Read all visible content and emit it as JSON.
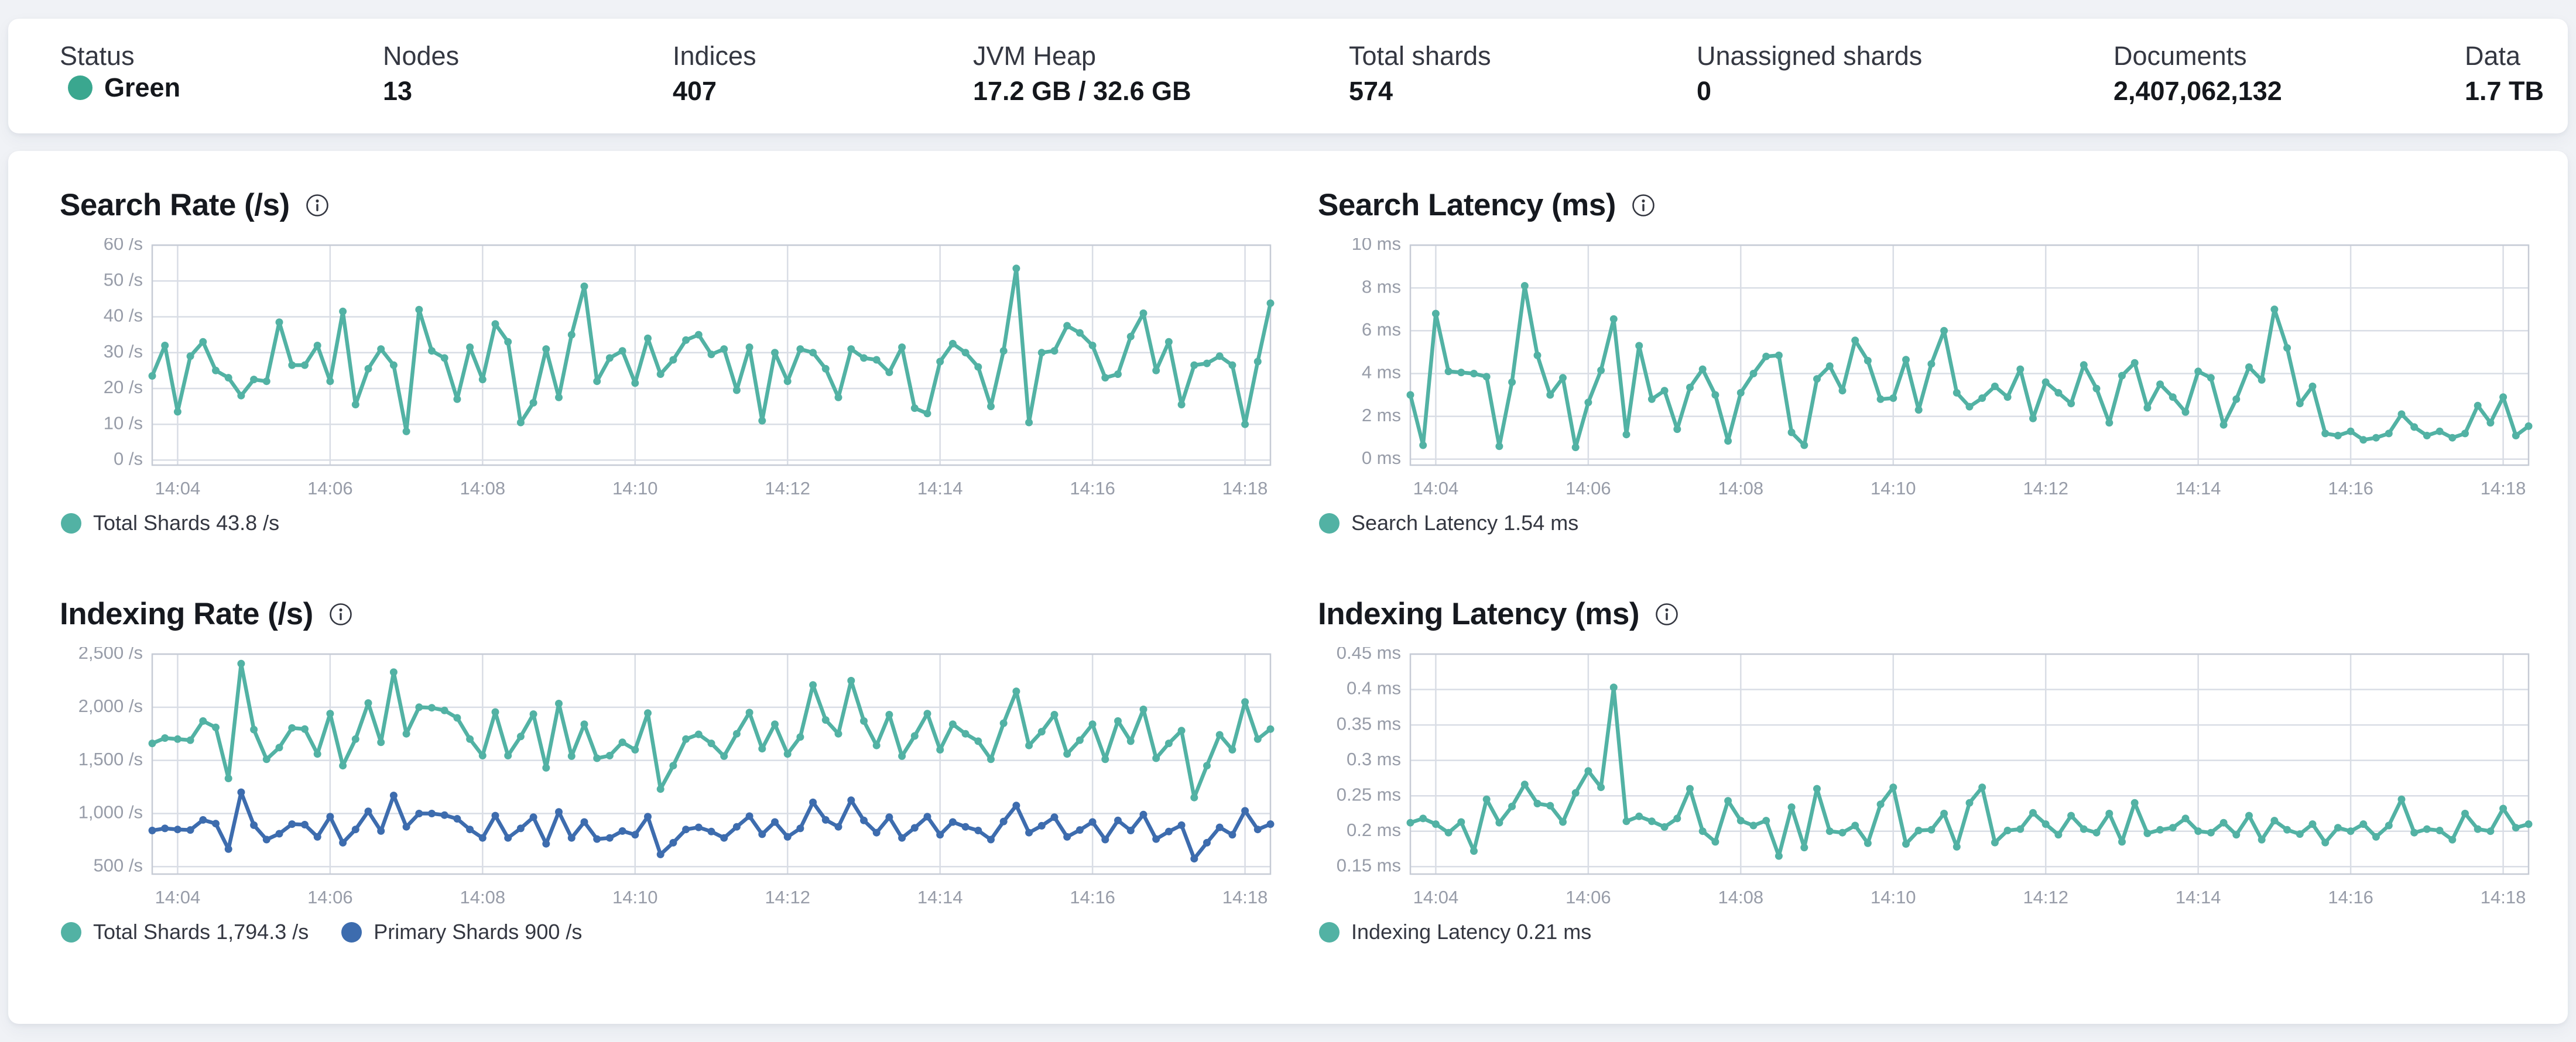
{
  "page": {
    "background": "#f0f2f6",
    "card_background": "#ffffff"
  },
  "colors": {
    "teal_series": "#52b2a4",
    "blue_series": "#3d6cae",
    "status_green_dot": "#3aa78f",
    "grid_line": "#d9dde5",
    "axis_border": "#c6cbd5",
    "tick_text": "#979ca8",
    "title_text": "#16191f",
    "legend_text": "#343741"
  },
  "summary_bar": {
    "items": [
      {
        "label": "Status",
        "value": "Green",
        "type": "status"
      },
      {
        "label": "Nodes",
        "value": "13"
      },
      {
        "label": "Indices",
        "value": "407"
      },
      {
        "label": "JVM Heap",
        "value": "17.2 GB / 32.6 GB"
      },
      {
        "label": "Total shards",
        "value": "574"
      },
      {
        "label": "Unassigned shards",
        "value": "0"
      },
      {
        "label": "Documents",
        "value": "2,407,062,132"
      },
      {
        "label": "Data",
        "value": "1.7 TB"
      }
    ]
  },
  "chart_data": [
    {
      "type": "line",
      "title": "Search Rate (/s)",
      "info_icon": "i-in-circle",
      "xlabel": "",
      "ylabel": "/s",
      "x_tick_labels": [
        "14:04",
        "14:06",
        "14:08",
        "14:10",
        "14:12",
        "14:14",
        "14:16",
        "14:18"
      ],
      "x_tick_indices": [
        2,
        14,
        26,
        38,
        50,
        62,
        74,
        86
      ],
      "x_start_time": "14:03:40",
      "x_step_seconds": 10,
      "ylim": [
        -1.4,
        60
      ],
      "y_ticks": [
        {
          "v": 0,
          "label": "0 /s"
        },
        {
          "v": 10,
          "label": "10 /s"
        },
        {
          "v": 20,
          "label": "20 /s"
        },
        {
          "v": 30,
          "label": "30 /s"
        },
        {
          "v": 40,
          "label": "40 /s"
        },
        {
          "v": 50,
          "label": "50 /s"
        },
        {
          "v": 60,
          "label": "60 /s"
        }
      ],
      "legend": [
        {
          "label": "Total Shards 43.8 /s",
          "color": "#52b2a4"
        }
      ],
      "series": [
        {
          "name": "Total Shards",
          "latest": "43.8 /s",
          "color": "#52b2a4",
          "values": [
            23.5,
            32,
            13.5,
            29,
            33,
            25,
            23,
            18,
            22.5,
            22,
            38.5,
            26.5,
            26.5,
            32,
            22,
            41.5,
            15.5,
            25.5,
            31,
            26.5,
            8,
            42,
            30.5,
            28.5,
            17,
            31.5,
            22.5,
            38,
            33,
            10.5,
            16,
            31,
            17.5,
            35,
            48.5,
            22,
            28.5,
            30.5,
            21.5,
            34,
            24,
            28,
            33.5,
            35,
            29.5,
            31,
            19.5,
            31.5,
            11,
            30,
            22,
            31,
            30,
            25.5,
            17.5,
            31,
            28.5,
            28,
            24.5,
            31.5,
            14.5,
            13,
            27.5,
            32.5,
            30,
            26,
            15,
            30.5,
            53.5,
            10.5,
            30,
            30.5,
            37.5,
            35.5,
            32,
            23,
            24,
            34.5,
            41,
            25,
            33,
            15.5,
            26.5,
            27,
            29,
            26.5,
            10,
            27.5,
            43.8
          ]
        }
      ]
    },
    {
      "type": "line",
      "title": "Search Latency (ms)",
      "info_icon": "i-in-circle",
      "xlabel": "",
      "ylabel": "ms",
      "x_tick_labels": [
        "14:04",
        "14:06",
        "14:08",
        "14:10",
        "14:12",
        "14:14",
        "14:16",
        "14:18"
      ],
      "x_tick_indices": [
        2,
        14,
        26,
        38,
        50,
        62,
        74,
        86
      ],
      "x_start_time": "14:03:40",
      "x_step_seconds": 10,
      "ylim": [
        -0.28,
        10
      ],
      "y_ticks": [
        {
          "v": 0,
          "label": "0 ms"
        },
        {
          "v": 2,
          "label": "2 ms"
        },
        {
          "v": 4,
          "label": "4 ms"
        },
        {
          "v": 6,
          "label": "6 ms"
        },
        {
          "v": 8,
          "label": "8 ms"
        },
        {
          "v": 10,
          "label": "10 ms"
        }
      ],
      "legend": [
        {
          "label": "Search Latency 1.54 ms",
          "color": "#52b2a4"
        }
      ],
      "series": [
        {
          "name": "Search Latency",
          "latest": "1.54 ms",
          "color": "#52b2a4",
          "values": [
            3.0,
            0.65,
            6.8,
            4.1,
            4.05,
            4.0,
            3.85,
            0.6,
            3.6,
            8.1,
            4.85,
            3.0,
            3.8,
            0.55,
            2.65,
            4.15,
            6.55,
            1.15,
            5.3,
            2.8,
            3.2,
            1.4,
            3.35,
            4.2,
            3.0,
            0.85,
            3.1,
            4.0,
            4.8,
            4.85,
            1.25,
            0.65,
            3.75,
            4.35,
            3.2,
            5.55,
            4.6,
            2.8,
            2.85,
            4.65,
            2.3,
            4.45,
            6.0,
            3.1,
            2.45,
            2.85,
            3.4,
            2.9,
            4.2,
            1.9,
            3.6,
            3.1,
            2.6,
            4.4,
            3.3,
            1.7,
            3.9,
            4.5,
            2.4,
            3.5,
            2.9,
            2.2,
            4.1,
            3.8,
            1.6,
            2.8,
            4.3,
            3.7,
            7.0,
            5.2,
            2.6,
            3.4,
            1.2,
            1.1,
            1.3,
            0.9,
            1.0,
            1.2,
            2.1,
            1.5,
            1.1,
            1.3,
            1.0,
            1.2,
            2.5,
            1.7,
            2.9,
            1.1,
            1.54
          ]
        }
      ]
    },
    {
      "type": "line",
      "title": "Indexing Rate (/s)",
      "info_icon": "i-in-circle",
      "xlabel": "",
      "ylabel": "/s",
      "x_tick_labels": [
        "14:04",
        "14:06",
        "14:08",
        "14:10",
        "14:12",
        "14:14",
        "14:16",
        "14:18"
      ],
      "x_tick_indices": [
        2,
        14,
        26,
        38,
        50,
        62,
        74,
        86
      ],
      "x_start_time": "14:03:40",
      "x_step_seconds": 10,
      "ylim": [
        430,
        2500
      ],
      "y_ticks": [
        {
          "v": 500,
          "label": "500 /s"
        },
        {
          "v": 1000,
          "label": "1,000 /s"
        },
        {
          "v": 1500,
          "label": "1,500 /s"
        },
        {
          "v": 2000,
          "label": "2,000 /s"
        },
        {
          "v": 2500,
          "label": "2,500 /s"
        }
      ],
      "legend": [
        {
          "label": "Total Shards 1,794.3 /s",
          "color": "#52b2a4"
        },
        {
          "label": "Primary Shards 900 /s",
          "color": "#3d6cae"
        }
      ],
      "series": [
        {
          "name": "Total Shards",
          "latest": "1,794.3 /s",
          "color": "#52b2a4",
          "values": [
            1660,
            1710,
            1700,
            1690,
            1870,
            1810,
            1330,
            2410,
            1790,
            1510,
            1620,
            1805,
            1795,
            1560,
            1940,
            1450,
            1700,
            2040,
            1670,
            2330,
            1750,
            2000,
            1995,
            1970,
            1900,
            1700,
            1545,
            1955,
            1545,
            1725,
            1935,
            1430,
            2035,
            1540,
            1840,
            1520,
            1545,
            1670,
            1600,
            1945,
            1230,
            1450,
            1700,
            1745,
            1660,
            1540,
            1750,
            1950,
            1610,
            1840,
            1560,
            1720,
            2210,
            1880,
            1750,
            2250,
            1870,
            1640,
            1930,
            1540,
            1730,
            1940,
            1600,
            1840,
            1750,
            1680,
            1510,
            1850,
            2150,
            1640,
            1770,
            1930,
            1560,
            1690,
            1840,
            1510,
            1870,
            1680,
            1980,
            1520,
            1660,
            1780,
            1150,
            1450,
            1740,
            1600,
            2050,
            1700,
            1794.3
          ]
        },
        {
          "name": "Primary Shards",
          "latest": "900 /s",
          "color": "#3d6cae",
          "values": [
            840,
            860,
            850,
            845,
            940,
            905,
            665,
            1200,
            890,
            755,
            810,
            900,
            895,
            780,
            970,
            725,
            850,
            1020,
            835,
            1170,
            875,
            1000,
            1000,
            985,
            950,
            850,
            770,
            980,
            770,
            860,
            965,
            715,
            1015,
            770,
            920,
            760,
            770,
            835,
            800,
            970,
            615,
            725,
            850,
            870,
            830,
            770,
            875,
            975,
            805,
            920,
            780,
            860,
            1105,
            940,
            875,
            1125,
            935,
            820,
            965,
            770,
            865,
            970,
            800,
            920,
            875,
            840,
            755,
            925,
            1075,
            820,
            885,
            965,
            780,
            845,
            920,
            755,
            935,
            840,
            990,
            760,
            830,
            890,
            575,
            725,
            870,
            800,
            1025,
            850,
            900
          ]
        }
      ]
    },
    {
      "type": "line",
      "title": "Indexing Latency (ms)",
      "info_icon": "i-in-circle",
      "xlabel": "",
      "ylabel": "ms",
      "x_tick_labels": [
        "14:04",
        "14:06",
        "14:08",
        "14:10",
        "14:12",
        "14:14",
        "14:16",
        "14:18"
      ],
      "x_tick_indices": [
        2,
        14,
        26,
        38,
        50,
        62,
        74,
        86
      ],
      "x_start_time": "14:03:40",
      "x_step_seconds": 10,
      "ylim": [
        0.1395,
        0.45
      ],
      "y_ticks": [
        {
          "v": 0.15,
          "label": "0.15 ms"
        },
        {
          "v": 0.2,
          "label": "0.2 ms"
        },
        {
          "v": 0.25,
          "label": "0.25 ms"
        },
        {
          "v": 0.3,
          "label": "0.3 ms"
        },
        {
          "v": 0.35,
          "label": "0.35 ms"
        },
        {
          "v": 0.4,
          "label": "0.4 ms"
        },
        {
          "v": 0.45,
          "label": "0.45 ms"
        }
      ],
      "legend": [
        {
          "label": "Indexing Latency 0.21 ms",
          "color": "#52b2a4"
        }
      ],
      "series": [
        {
          "name": "Indexing Latency",
          "latest": "0.21 ms",
          "color": "#52b2a4",
          "values": [
            0.212,
            0.218,
            0.21,
            0.198,
            0.213,
            0.172,
            0.245,
            0.212,
            0.235,
            0.266,
            0.239,
            0.236,
            0.213,
            0.254,
            0.285,
            0.262,
            0.403,
            0.214,
            0.221,
            0.214,
            0.206,
            0.218,
            0.26,
            0.2,
            0.185,
            0.243,
            0.215,
            0.208,
            0.215,
            0.165,
            0.234,
            0.177,
            0.26,
            0.2,
            0.198,
            0.208,
            0.183,
            0.238,
            0.262,
            0.182,
            0.201,
            0.202,
            0.225,
            0.178,
            0.24,
            0.262,
            0.184,
            0.201,
            0.203,
            0.226,
            0.21,
            0.195,
            0.222,
            0.203,
            0.198,
            0.225,
            0.185,
            0.24,
            0.197,
            0.202,
            0.205,
            0.218,
            0.2,
            0.198,
            0.212,
            0.195,
            0.222,
            0.188,
            0.215,
            0.202,
            0.196,
            0.21,
            0.184,
            0.205,
            0.2,
            0.21,
            0.192,
            0.208,
            0.245,
            0.198,
            0.203,
            0.201,
            0.188,
            0.225,
            0.203,
            0.2,
            0.232,
            0.205,
            0.21
          ]
        }
      ]
    }
  ]
}
